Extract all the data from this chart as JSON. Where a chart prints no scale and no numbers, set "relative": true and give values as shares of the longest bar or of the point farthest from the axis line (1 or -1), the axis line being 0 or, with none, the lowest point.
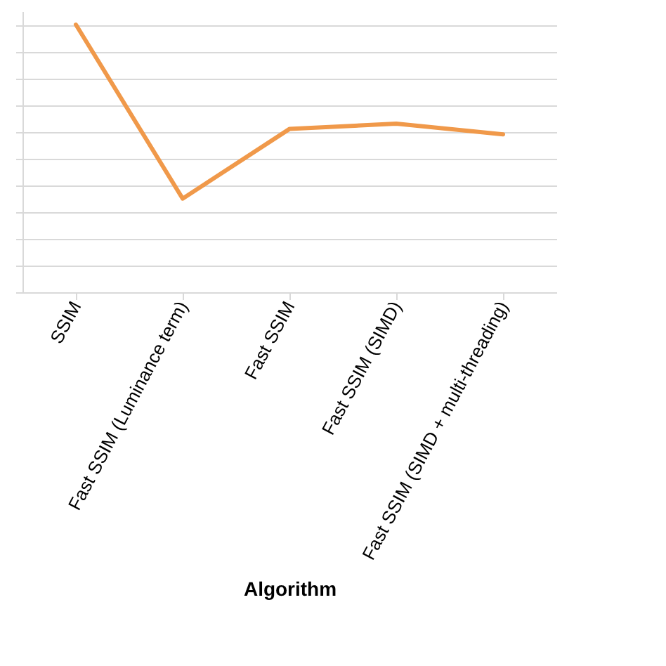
{
  "chart_data": {
    "type": "line",
    "xlabel": "Algorithm",
    "relative": true,
    "grid": "y",
    "categories": [
      "SSIM",
      "Fast SSIM (Luminance term)",
      "Fast SSIM",
      "Fast SSIM (SIMD)",
      "Fast SSIM (SIMD + multi-threading)"
    ],
    "series": [
      {
        "color": "#f0994a",
        "values": [
          1,
          0.35,
          0.61,
          0.63,
          0.59
        ]
      }
    ]
  }
}
